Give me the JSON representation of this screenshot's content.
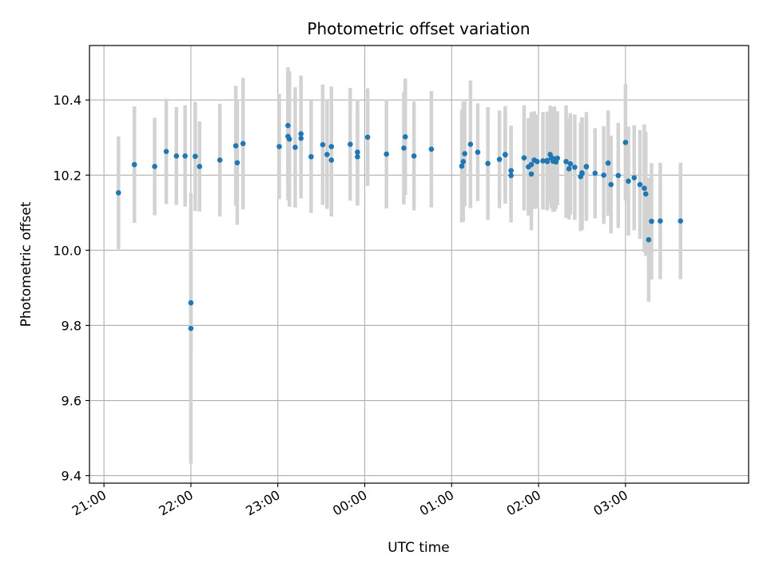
{
  "chart_data": {
    "type": "scatter",
    "title": "Photometric offset variation",
    "xlabel": "UTC time",
    "ylabel": "Photometric offset",
    "x_start": "20:50",
    "x_end": "04:25",
    "ylim": [
      9.38,
      10.545
    ],
    "grid": true,
    "x_ticks": [
      "21:00",
      "22:00",
      "23:00",
      "00:00",
      "01:00",
      "02:00",
      "03:00"
    ],
    "y_ticks": [
      9.4,
      9.6,
      9.8,
      10.0,
      10.2,
      10.4
    ],
    "colors": {
      "point": "#1f77b4",
      "errorbar": "#d3d3d3",
      "grid": "#b0b0b0"
    },
    "x": [
      "21:10",
      "21:21",
      "21:35",
      "21:43",
      "21:50",
      "21:56",
      "22:00",
      "22:00",
      "22:03",
      "22:06",
      "22:20",
      "22:31",
      "22:32",
      "22:36",
      "23:01",
      "23:07",
      "23:07",
      "23:08",
      "23:12",
      "23:16",
      "23:16",
      "23:23",
      "23:31",
      "23:34",
      "23:37",
      "23:37",
      "23:50",
      "23:55",
      "23:55",
      "00:02",
      "00:15",
      "00:27",
      "00:28",
      "00:34",
      "00:46",
      "01:07",
      "01:08",
      "01:09",
      "01:13",
      "01:18",
      "01:25",
      "01:33",
      "01:37",
      "01:37",
      "01:41",
      "01:41",
      "01:50",
      "01:53",
      "01:55",
      "01:55",
      "01:57",
      "01:59",
      "02:03",
      "02:06",
      "02:06",
      "02:08",
      "02:09",
      "02:10",
      "02:11",
      "02:12",
      "02:13",
      "02:19",
      "02:21",
      "02:22",
      "02:25",
      "02:29",
      "02:30",
      "02:30",
      "02:33",
      "02:33",
      "02:39",
      "02:45",
      "02:48",
      "02:50",
      "02:55",
      "03:00",
      "03:02",
      "03:06",
      "03:10",
      "03:13",
      "03:14",
      "03:16",
      "03:18",
      "03:24",
      "03:38"
    ],
    "y": [
      10.153,
      10.228,
      10.223,
      10.263,
      10.251,
      10.251,
      9.86,
      9.792,
      10.25,
      10.223,
      10.24,
      10.278,
      10.233,
      10.284,
      10.276,
      10.332,
      10.303,
      10.296,
      10.274,
      10.31,
      10.298,
      10.249,
      10.281,
      10.255,
      10.276,
      10.24,
      10.282,
      10.261,
      10.249,
      10.301,
      10.256,
      10.272,
      10.302,
      10.251,
      10.269,
      10.224,
      10.236,
      10.257,
      10.282,
      10.261,
      10.231,
      10.242,
      10.255,
      10.254,
      10.212,
      10.199,
      10.246,
      10.222,
      10.203,
      10.228,
      10.24,
      10.236,
      10.238,
      10.239,
      10.236,
      10.255,
      10.246,
      10.237,
      10.243,
      10.235,
      10.245,
      10.236,
      10.217,
      10.23,
      10.221,
      10.196,
      10.206,
      10.204,
      10.222,
      10.223,
      10.205,
      10.2,
      10.232,
      10.175,
      10.199,
      10.287,
      10.184,
      10.193,
      10.175,
      10.165,
      10.15,
      10.028,
      10.077,
      10.078,
      10.078
    ],
    "y_err": [
      0.15,
      0.155,
      0.13,
      0.14,
      0.13,
      0.135,
      0.13,
      0.36,
      0.145,
      0.12,
      0.15,
      0.16,
      0.165,
      0.175,
      0.14,
      0.155,
      0.17,
      0.18,
      0.16,
      0.155,
      0.16,
      0.15,
      0.16,
      0.145,
      0.16,
      0.15,
      0.15,
      0.14,
      0.13,
      0.13,
      0.145,
      0.15,
      0.155,
      0.145,
      0.155,
      0.15,
      0.16,
      0.14,
      0.17,
      0.13,
      0.15,
      0.13,
      0.11,
      0.13,
      0.12,
      0.125,
      0.14,
      0.13,
      0.15,
      0.14,
      0.13,
      0.125,
      0.13,
      0.13,
      0.13,
      0.13,
      0.135,
      0.135,
      0.14,
      0.125,
      0.125,
      0.15,
      0.135,
      0.135,
      0.14,
      0.145,
      0.145,
      0.15,
      0.13,
      0.145,
      0.12,
      0.13,
      0.14,
      0.13,
      0.14,
      0.155,
      0.145,
      0.14,
      0.145,
      0.17,
      0.165,
      0.165,
      0.155,
      0.155,
      0.155
    ]
  }
}
